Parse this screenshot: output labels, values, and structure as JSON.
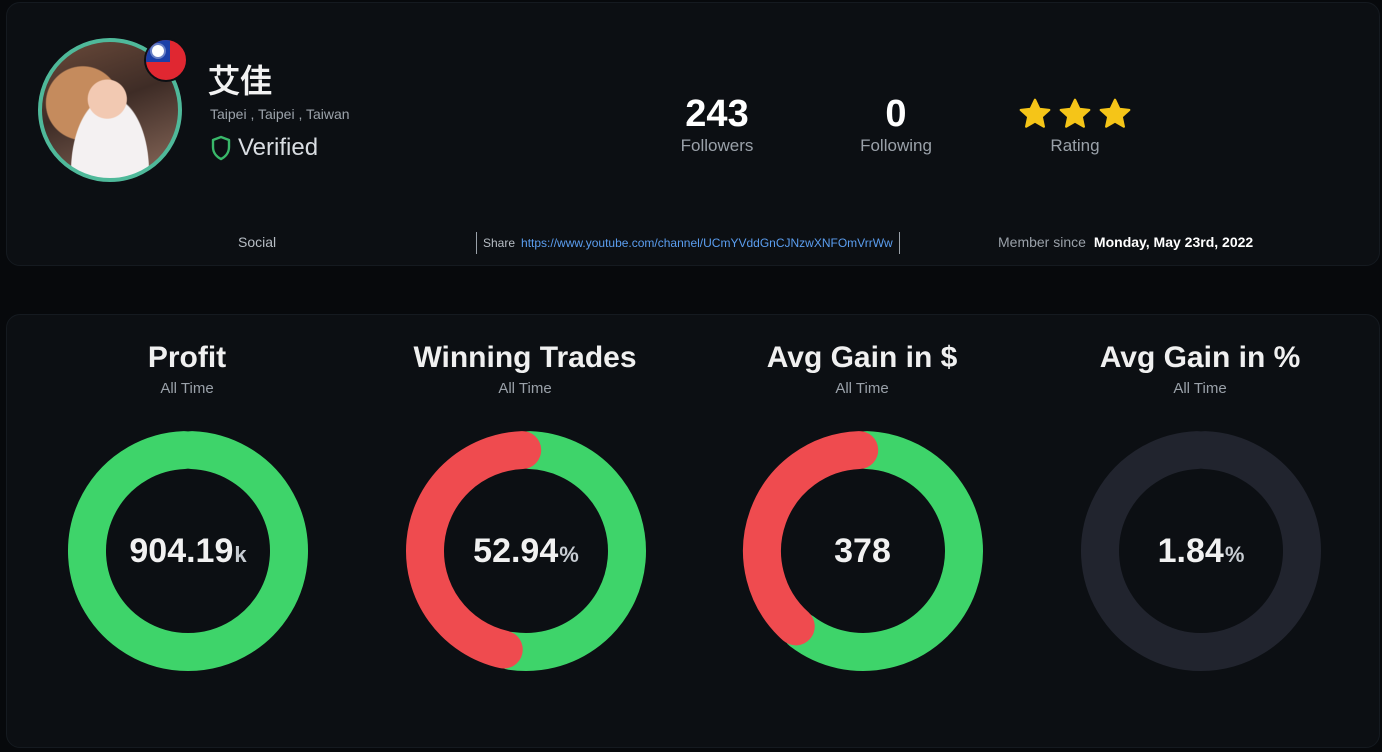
{
  "profile": {
    "name": "艾佳",
    "location": "Taipei , Taipei , Taiwan",
    "verified_label": "Verified",
    "stats": {
      "followers": "243",
      "followers_label": "Followers",
      "following": "0",
      "following_label": "Following",
      "rating_label": "Rating",
      "rating_stars": 3
    },
    "social_label": "Social",
    "share_label": "Share",
    "share_url": "https://www.youtube.com/channel/UCmYVddGnCJNzwXNFOmVrrWw",
    "member_since_label": "Member since",
    "member_since_date": "Monday, May 23rd, 2022"
  },
  "metrics": [
    {
      "title": "Profit",
      "subtitle": "All Time",
      "value": "904.19",
      "unit": "k",
      "green_fraction": 1.0,
      "red_fraction": 0.0
    },
    {
      "title": "Winning Trades",
      "subtitle": "All Time",
      "value": "52.94",
      "unit": "%",
      "green_fraction": 0.5294,
      "red_fraction": 0.4706
    },
    {
      "title": "Avg Gain in $",
      "subtitle": "All Time",
      "value": "378",
      "unit": "",
      "green_fraction": 0.61,
      "red_fraction": 0.39
    },
    {
      "title": "Avg Gain in %",
      "subtitle": "All Time",
      "value": "1.84",
      "unit": "%",
      "green_fraction": 0.0,
      "red_fraction": 0.0
    }
  ],
  "colors": {
    "green": "#3ed46a",
    "red": "#ef4b4f",
    "track": "#21242e",
    "accent_link": "#5b9ef0",
    "star": "#f5c518",
    "verified": "#39b86a"
  },
  "icons": {
    "verified": "shield-icon",
    "rating": "star-icon",
    "flag": "taiwan-flag-icon"
  }
}
